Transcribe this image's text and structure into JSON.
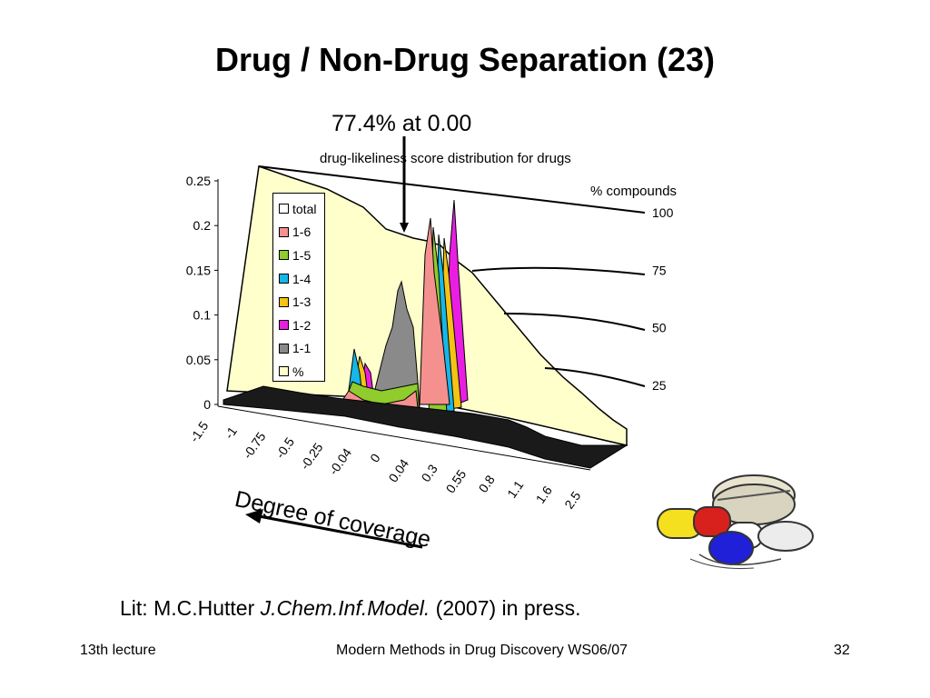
{
  "slide": {
    "title": "Drug / Non-Drug Separation (23)",
    "annotation": "77.4% at 0.00",
    "coverage_label": "Degree of coverage",
    "lit_prefix": "Lit: M.C.Hutter ",
    "lit_journal": "J.Chem.Inf.Model.",
    "lit_suffix": " (2007) in press.",
    "footer_left": "13th lecture",
    "footer_center": "Modern Methods in Drug Discovery WS06/07",
    "footer_right": "32"
  },
  "chart_data": {
    "type": "area",
    "title": "drug-likeliness score distribution for drugs",
    "x_tick_labels": [
      "-1.5",
      "-1",
      "-0.75",
      "-0.5",
      "-0.25",
      "-0.04",
      "0",
      "0.04",
      "0.3",
      "0.55",
      "0.8",
      "1.1",
      "1.6",
      "2.5"
    ],
    "y_tick_labels": [
      "0",
      "0.05",
      "0.1",
      "0.15",
      "0.2",
      "0.25"
    ],
    "ylim": [
      0,
      0.25
    ],
    "secondary_axis": {
      "title": "% compounds",
      "tick_labels": [
        "25",
        "50",
        "75",
        "100"
      ],
      "range": [
        0,
        100
      ]
    },
    "legend": [
      {
        "name": "total",
        "color": "#ffffff"
      },
      {
        "name": "1-6",
        "color": "#f4918f"
      },
      {
        "name": "1-5",
        "color": "#8fcc2c"
      },
      {
        "name": "1-4",
        "color": "#16b7e6"
      },
      {
        "name": "1-3",
        "color": "#f5c314"
      },
      {
        "name": "1-2",
        "color": "#ea1ee2"
      },
      {
        "name": "1-1",
        "color": "#8a8a8a"
      },
      {
        "name": "%",
        "color": "#ffffcc"
      }
    ],
    "series": [
      {
        "name": "%",
        "values": [
          100,
          99,
          98,
          97,
          96,
          95,
          92,
          89,
          86,
          83,
          81,
          77.4,
          72,
          65,
          58,
          50,
          42,
          35,
          28,
          22,
          16,
          11,
          7,
          3.5,
          1,
          0
        ]
      },
      {
        "name": "1-1",
        "values": [
          0.002,
          0.003,
          0.004,
          0.005,
          0.006,
          0.008,
          0.01,
          0.012,
          0.02,
          0.13,
          0.06,
          0.02,
          0.01,
          0.005,
          0.004,
          0.003,
          0.002,
          0.002,
          0.001,
          0.001,
          0.001,
          0.001,
          0.001,
          0.001,
          0.001,
          0.001
        ]
      },
      {
        "name": "1-6",
        "values": [
          0.001,
          0.002,
          0.003,
          0.004,
          0.006,
          0.01,
          0.03,
          0.05,
          0.06,
          0.04,
          0.03,
          0.21,
          0.16,
          0.06,
          0.03,
          0.02,
          0.015,
          0.01,
          0.008,
          0.006,
          0.004,
          0.003,
          0.003,
          0.002,
          0.001,
          0.001
        ]
      }
    ]
  }
}
